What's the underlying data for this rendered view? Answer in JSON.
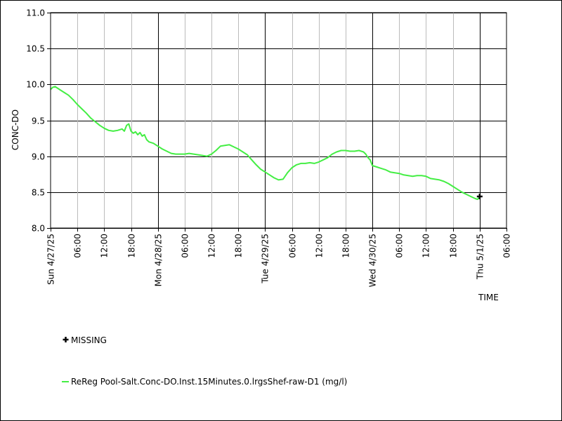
{
  "chart_data": {
    "type": "line",
    "ylabel": "CONC-DO",
    "xlabel": "TIME",
    "ylim": [
      8.0,
      11.0
    ],
    "y_ticks": [
      "8.0",
      "8.5",
      "9.0",
      "9.5",
      "10.0",
      "10.5",
      "11.0"
    ],
    "x_range_hours": [
      0,
      102
    ],
    "day_labels": [
      "Sun 4/27/25",
      "Mon 4/28/25",
      "Tue 4/29/25",
      "Wed 4/30/25",
      "Thu 5/1/25"
    ],
    "hour_labels": [
      "06:00",
      "12:00",
      "18:00"
    ],
    "end_label": "06:00",
    "grid": true,
    "legend_placement": "bottom-left",
    "series": [
      {
        "name": "ReReg Pool-Salt.Conc-DO.Inst.15Minutes.0.lrgsShef-raw-D1 (mg/l)",
        "color": "#44ee44",
        "points": [
          [
            0.0,
            9.93
          ],
          [
            0.5,
            9.96
          ],
          [
            1.0,
            9.97
          ],
          [
            2.0,
            9.93
          ],
          [
            3.0,
            9.89
          ],
          [
            4.0,
            9.85
          ],
          [
            5.0,
            9.79
          ],
          [
            6.0,
            9.72
          ],
          [
            7.0,
            9.66
          ],
          [
            8.0,
            9.6
          ],
          [
            9.0,
            9.53
          ],
          [
            10.0,
            9.48
          ],
          [
            11.0,
            9.43
          ],
          [
            12.0,
            9.39
          ],
          [
            13.0,
            9.36
          ],
          [
            14.0,
            9.35
          ],
          [
            15.0,
            9.36
          ],
          [
            16.0,
            9.38
          ],
          [
            16.5,
            9.35
          ],
          [
            17.0,
            9.43
          ],
          [
            17.5,
            9.45
          ],
          [
            18.0,
            9.35
          ],
          [
            18.5,
            9.32
          ],
          [
            19.0,
            9.34
          ],
          [
            19.5,
            9.3
          ],
          [
            20.0,
            9.33
          ],
          [
            20.5,
            9.28
          ],
          [
            21.0,
            9.3
          ],
          [
            21.5,
            9.23
          ],
          [
            22.0,
            9.2
          ],
          [
            23.0,
            9.18
          ],
          [
            24.0,
            9.14
          ],
          [
            25.0,
            9.1
          ],
          [
            26.0,
            9.07
          ],
          [
            27.0,
            9.04
          ],
          [
            28.0,
            9.03
          ],
          [
            30.0,
            9.03
          ],
          [
            31.0,
            9.04
          ],
          [
            32.0,
            9.03
          ],
          [
            33.0,
            9.02
          ],
          [
            34.0,
            9.01
          ],
          [
            35.0,
            9.0
          ],
          [
            36.0,
            9.03
          ],
          [
            37.0,
            9.08
          ],
          [
            38.0,
            9.14
          ],
          [
            39.0,
            9.15
          ],
          [
            40.0,
            9.16
          ],
          [
            41.0,
            9.13
          ],
          [
            42.0,
            9.1
          ],
          [
            43.0,
            9.06
          ],
          [
            44.0,
            9.02
          ],
          [
            45.0,
            8.95
          ],
          [
            46.0,
            8.88
          ],
          [
            47.0,
            8.82
          ],
          [
            48.0,
            8.78
          ],
          [
            49.0,
            8.74
          ],
          [
            50.0,
            8.7
          ],
          [
            51.0,
            8.67
          ],
          [
            52.0,
            8.68
          ],
          [
            53.0,
            8.77
          ],
          [
            54.0,
            8.84
          ],
          [
            55.0,
            8.88
          ],
          [
            56.0,
            8.9
          ],
          [
            57.0,
            8.9
          ],
          [
            58.0,
            8.91
          ],
          [
            59.0,
            8.9
          ],
          [
            60.0,
            8.92
          ],
          [
            61.0,
            8.95
          ],
          [
            62.0,
            8.98
          ],
          [
            63.0,
            9.03
          ],
          [
            64.0,
            9.06
          ],
          [
            65.0,
            9.08
          ],
          [
            66.0,
            9.08
          ],
          [
            67.0,
            9.07
          ],
          [
            68.0,
            9.07
          ],
          [
            69.0,
            9.08
          ],
          [
            70.0,
            9.06
          ],
          [
            70.5,
            9.03
          ],
          [
            71.0,
            8.98
          ],
          [
            71.5,
            8.95
          ],
          [
            72.0,
            8.87
          ],
          [
            73.0,
            8.85
          ],
          [
            74.0,
            8.83
          ],
          [
            75.0,
            8.81
          ],
          [
            76.0,
            8.78
          ],
          [
            77.0,
            8.77
          ],
          [
            78.0,
            8.76
          ],
          [
            79.0,
            8.74
          ],
          [
            80.0,
            8.73
          ],
          [
            81.0,
            8.72
          ],
          [
            82.0,
            8.73
          ],
          [
            83.0,
            8.73
          ],
          [
            84.0,
            8.72
          ],
          [
            85.0,
            8.69
          ],
          [
            86.0,
            8.68
          ],
          [
            87.0,
            8.67
          ],
          [
            88.0,
            8.65
          ],
          [
            89.0,
            8.62
          ],
          [
            90.0,
            8.58
          ],
          [
            91.0,
            8.54
          ],
          [
            92.0,
            8.5
          ],
          [
            93.0,
            8.47
          ],
          [
            94.0,
            8.44
          ],
          [
            95.0,
            8.41
          ],
          [
            95.5,
            8.4
          ],
          [
            96.0,
            8.43
          ]
        ]
      }
    ],
    "missing": {
      "label": "MISSING",
      "points": [
        [
          96.0,
          8.44
        ]
      ]
    }
  }
}
